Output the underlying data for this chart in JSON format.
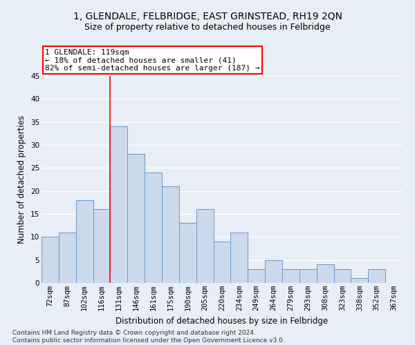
{
  "title": "1, GLENDALE, FELBRIDGE, EAST GRINSTEAD, RH19 2QN",
  "subtitle": "Size of property relative to detached houses in Felbridge",
  "xlabel": "Distribution of detached houses by size in Felbridge",
  "ylabel": "Number of detached properties",
  "categories": [
    "72sqm",
    "87sqm",
    "102sqm",
    "116sqm",
    "131sqm",
    "146sqm",
    "161sqm",
    "175sqm",
    "190sqm",
    "205sqm",
    "220sqm",
    "234sqm",
    "249sqm",
    "264sqm",
    "279sqm",
    "293sqm",
    "308sqm",
    "323sqm",
    "338sqm",
    "352sqm",
    "367sqm"
  ],
  "values": [
    10,
    11,
    18,
    16,
    34,
    28,
    24,
    21,
    13,
    16,
    9,
    11,
    3,
    5,
    3,
    3,
    4,
    3,
    1,
    3,
    0
  ],
  "bar_color": "#ccd9eb",
  "bar_edge_color": "#6699cc",
  "annotation_line1": "1 GLENDALE: 119sqm",
  "annotation_line2": "← 18% of detached houses are smaller (41)",
  "annotation_line3": "82% of semi-detached houses are larger (187) →",
  "annotation_box_color": "white",
  "annotation_box_edge_color": "red",
  "vline_x": 3.5,
  "vline_color": "red",
  "ylim": [
    0,
    45
  ],
  "yticks": [
    0,
    5,
    10,
    15,
    20,
    25,
    30,
    35,
    40,
    45
  ],
  "bg_color": "#e8eef5",
  "grid_color": "#ffffff",
  "footer": "Contains HM Land Registry data © Crown copyright and database right 2024.\nContains public sector information licensed under the Open Government Licence v3.0.",
  "title_fontsize": 10,
  "subtitle_fontsize": 9,
  "axis_label_fontsize": 8.5,
  "tick_fontsize": 7.5,
  "footer_fontsize": 6.5,
  "annotation_fontsize": 8
}
